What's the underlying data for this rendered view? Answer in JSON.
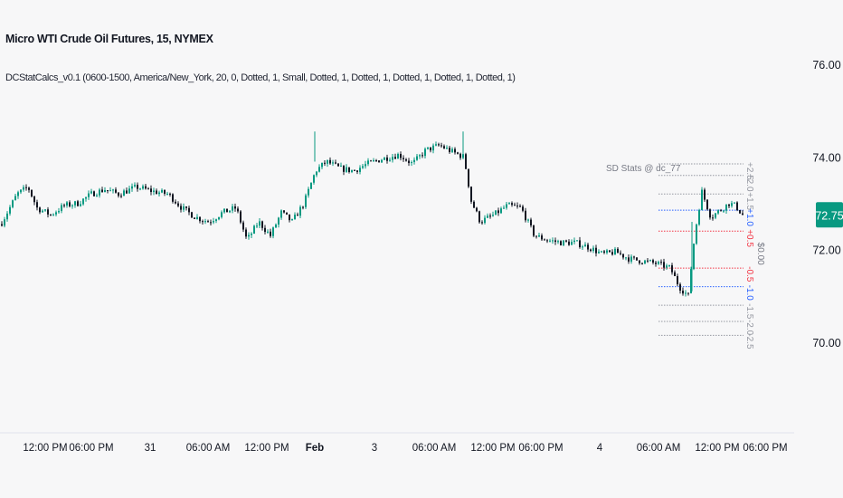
{
  "header": {
    "title": "Micro WTI Crude Oil Futures, 15, NYMEX",
    "indicator": "DCStatCalcs_v0.1 (0600-1500, America/New_York, 20, 0, Dotted, 1, Small, Dotted, 1, Dotted, 1, Dotted, 1, Dotted, 1, Dotted, 1)"
  },
  "price_badge": {
    "value": "72.75",
    "color": "#089981"
  },
  "sd_panel": {
    "title": "SD Stats @ dc_77",
    "mean_label": "$0.00",
    "levels": [
      {
        "label": "+2.5",
        "value": 73.85,
        "color": "#9598a1"
      },
      {
        "label": "+2.0",
        "value": 73.6,
        "color": "#9598a1"
      },
      {
        "label": "+1.5",
        "value": 73.2,
        "color": "#9598a1"
      },
      {
        "label": "+1.0",
        "value": 72.85,
        "color": "#2962ff"
      },
      {
        "label": "+0.5",
        "value": 72.4,
        "color": "#f23645"
      },
      {
        "label": "-0.5",
        "value": 71.6,
        "color": "#f23645"
      },
      {
        "label": "-1.0",
        "value": 71.2,
        "color": "#2962ff"
      },
      {
        "label": "-1.5",
        "value": 70.8,
        "color": "#9598a1"
      },
      {
        "label": "-2.0",
        "value": 70.45,
        "color": "#9598a1"
      },
      {
        "label": "-2.5",
        "value": 70.15,
        "color": "#9598a1"
      }
    ]
  },
  "chart_data": {
    "type": "candlestick",
    "y_axis": {
      "ticks": [
        "76.00",
        "74.00",
        "72.00",
        "70.00"
      ],
      "ylim": [
        68.2,
        76.9
      ]
    },
    "x_axis": {
      "ticks": [
        "12:00 PM",
        "06:00 PM",
        "31",
        "06:00 AM",
        "12:00 PM",
        "Feb",
        "3",
        "06:00 AM",
        "12:00 PM",
        "06:00 PM",
        "4",
        "06:00 AM",
        "12:00 PM",
        "06:00 PM"
      ]
    },
    "up_color": "#089981",
    "down_color": "#131722",
    "close_path": [
      [
        0,
        72.55
      ],
      [
        18,
        73.2
      ],
      [
        30,
        73.35
      ],
      [
        40,
        72.9
      ],
      [
        55,
        72.75
      ],
      [
        70,
        72.95
      ],
      [
        85,
        73.0
      ],
      [
        100,
        73.2
      ],
      [
        115,
        73.3
      ],
      [
        130,
        73.2
      ],
      [
        150,
        73.35
      ],
      [
        170,
        73.25
      ],
      [
        185,
        73.2
      ],
      [
        200,
        72.9
      ],
      [
        215,
        72.7
      ],
      [
        230,
        72.6
      ],
      [
        245,
        72.8
      ],
      [
        260,
        72.9
      ],
      [
        272,
        72.2
      ],
      [
        285,
        72.6
      ],
      [
        298,
        72.3
      ],
      [
        310,
        72.8
      ],
      [
        322,
        72.6
      ],
      [
        335,
        73.0
      ],
      [
        348,
        73.7
      ],
      [
        360,
        73.9
      ],
      [
        375,
        73.75
      ],
      [
        390,
        73.7
      ],
      [
        405,
        73.85
      ],
      [
        420,
        73.95
      ],
      [
        440,
        74.05
      ],
      [
        455,
        73.85
      ],
      [
        470,
        74.15
      ],
      [
        485,
        74.25
      ],
      [
        500,
        74.1
      ],
      [
        512,
        74.0
      ],
      [
        520,
        73.05
      ],
      [
        530,
        72.6
      ],
      [
        545,
        72.75
      ],
      [
        560,
        72.95
      ],
      [
        575,
        72.9
      ],
      [
        590,
        72.3
      ],
      [
        605,
        72.2
      ],
      [
        620,
        72.15
      ],
      [
        635,
        72.15
      ],
      [
        650,
        72.05
      ],
      [
        665,
        71.9
      ],
      [
        680,
        71.95
      ],
      [
        695,
        71.8
      ],
      [
        710,
        71.75
      ],
      [
        725,
        71.7
      ],
      [
        740,
        71.6
      ],
      [
        750,
        71.2
      ],
      [
        760,
        71.0
      ],
      [
        765,
        72.0
      ],
      [
        770,
        72.7
      ],
      [
        775,
        73.25
      ],
      [
        785,
        72.7
      ],
      [
        795,
        72.85
      ],
      [
        805,
        73.0
      ],
      [
        812,
        72.95
      ],
      [
        820,
        72.75
      ]
    ]
  }
}
